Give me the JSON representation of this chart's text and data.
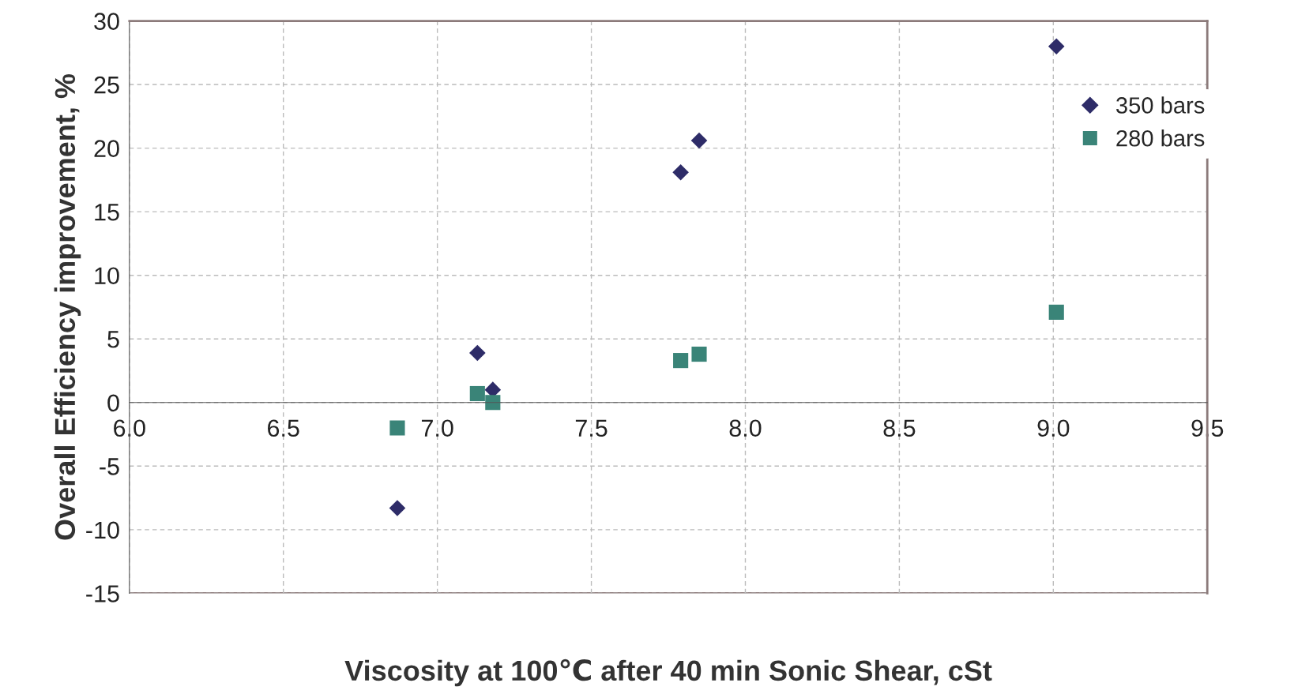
{
  "chart_data": {
    "type": "scatter",
    "xlabel": "Viscosity at 100℃ after 40 min Sonic Shear, cSt",
    "ylabel": "Overall Efficiency improvement, %",
    "series": [
      {
        "name": "350 bars",
        "color": "#2e2c68",
        "marker": "diamond",
        "x": [
          6.87,
          7.13,
          7.18,
          7.79,
          7.85,
          9.01
        ],
        "values": [
          -8.3,
          3.9,
          1.0,
          18.1,
          20.6,
          28.0
        ]
      },
      {
        "name": "280 bars",
        "color": "#3a8478",
        "marker": "square",
        "x": [
          6.87,
          7.13,
          7.18,
          7.79,
          7.85,
          9.01
        ],
        "values": [
          -2.0,
          0.7,
          0.0,
          3.3,
          3.8,
          7.1
        ]
      }
    ],
    "xlim": [
      6.0,
      9.5
    ],
    "xticks": [
      {
        "value": 6.0,
        "label": "6.0"
      },
      {
        "value": 6.5,
        "label": "6.5"
      },
      {
        "value": 7.0,
        "label": "7.0"
      },
      {
        "value": 7.5,
        "label": "7.5"
      },
      {
        "value": 8.0,
        "label": "8.0"
      },
      {
        "value": 8.5,
        "label": "8.5"
      },
      {
        "value": 9.0,
        "label": "9.0"
      },
      {
        "value": 9.5,
        "label": "9.5"
      }
    ],
    "ylim": [
      -15,
      30
    ],
    "yticks": [
      -15,
      -10,
      -5,
      0,
      5,
      10,
      15,
      20,
      25,
      30
    ],
    "grid": true,
    "legend": "top right"
  }
}
